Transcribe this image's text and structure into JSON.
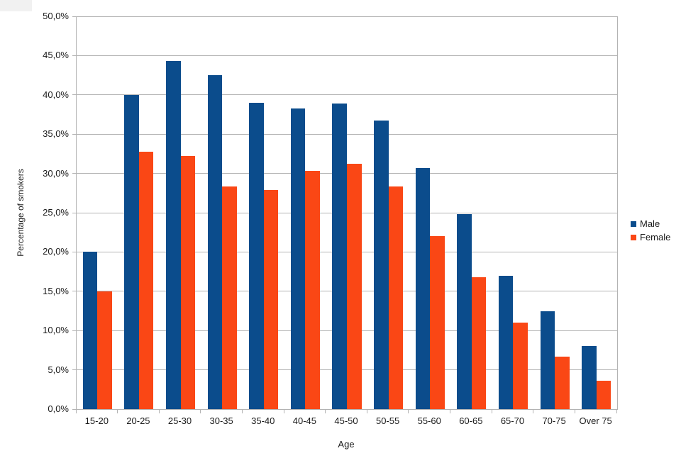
{
  "chart_data": {
    "type": "bar",
    "title": "",
    "categories": [
      "15-20",
      "20-25",
      "25-30",
      "30-35",
      "35-40",
      "40-45",
      "45-50",
      "50-55",
      "55-60",
      "60-65",
      "65-70",
      "70-75",
      "Over 75"
    ],
    "series": [
      {
        "name": "Male",
        "color": "#0b4c8c",
        "values": [
          20.0,
          40.0,
          44.3,
          42.5,
          39.0,
          38.3,
          38.9,
          36.7,
          30.7,
          24.8,
          17.0,
          12.5,
          8.0
        ]
      },
      {
        "name": "Female",
        "color": "#fa4715",
        "values": [
          15.0,
          32.8,
          32.2,
          28.3,
          27.9,
          30.3,
          31.2,
          28.3,
          22.0,
          16.8,
          11.0,
          6.7,
          3.6
        ]
      }
    ],
    "xlabel": "Age",
    "ylabel": "Percentage of smokers",
    "ylim": [
      0,
      50
    ],
    "ytick_step": 5,
    "ytick_labels": [
      "0,0%",
      "5,0%",
      "10,0%",
      "15,0%",
      "20,0%",
      "25,0%",
      "30,0%",
      "35,0%",
      "40,0%",
      "45,0%",
      "50,0%"
    ],
    "grid": true,
    "legend_position": "right",
    "grid_color": "#b3b3b3",
    "background": "#ffffff"
  },
  "legend": {
    "items": [
      {
        "label": "Male",
        "color": "#0b4c8c"
      },
      {
        "label": "Female",
        "color": "#fa4715"
      }
    ]
  }
}
